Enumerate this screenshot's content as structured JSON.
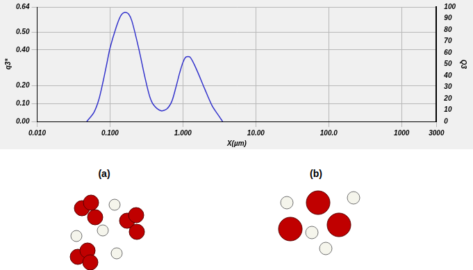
{
  "chart_data": {
    "type": "line",
    "x_label": "X(µm)",
    "y_label": "q3*",
    "y2_label": "Q3",
    "log": "x",
    "grid": true,
    "xlim": [
      0.01,
      3000
    ],
    "xticks": [
      {
        "value": 0.01,
        "label": "0.010"
      },
      {
        "value": 0.1,
        "label": "0.100"
      },
      {
        "value": 1,
        "label": "1.000"
      },
      {
        "value": 10,
        "label": "10.00"
      },
      {
        "value": 100,
        "label": "100.0"
      },
      1000,
      3000
    ],
    "ylim": [
      0,
      0.64
    ],
    "yticks": [
      {
        "value": 0,
        "label": "0.00"
      },
      {
        "value": 0.1,
        "label": "0.10"
      },
      {
        "value": 0.2,
        "label": "0.20"
      },
      {
        "value": 0.4,
        "label": "0.40"
      },
      {
        "value": 0.5,
        "label": "0.50"
      },
      0.64
    ],
    "y2lim": [
      0,
      100
    ],
    "y2ticks": [
      0,
      10,
      20,
      30,
      40,
      50,
      60,
      70,
      80,
      90,
      100
    ],
    "color": "#3333cc",
    "x": [
      0.048,
      0.06,
      0.07,
      0.08,
      0.09,
      0.1,
      0.12,
      0.14,
      0.16,
      0.18,
      0.2,
      0.25,
      0.3,
      0.35,
      0.4,
      0.5,
      0.6,
      0.7,
      0.8,
      0.9,
      1.0,
      1.1,
      1.25,
      1.5,
      2.0,
      2.5,
      3.0,
      3.5
    ],
    "values": [
      0,
      0.05,
      0.12,
      0.22,
      0.32,
      0.41,
      0.52,
      0.59,
      0.61,
      0.6,
      0.56,
      0.4,
      0.25,
      0.14,
      0.09,
      0.06,
      0.07,
      0.11,
      0.19,
      0.27,
      0.33,
      0.36,
      0.36,
      0.3,
      0.18,
      0.09,
      0.04,
      0
    ]
  },
  "panels": [
    {
      "label": "(a)"
    },
    {
      "label": "(b)"
    }
  ]
}
